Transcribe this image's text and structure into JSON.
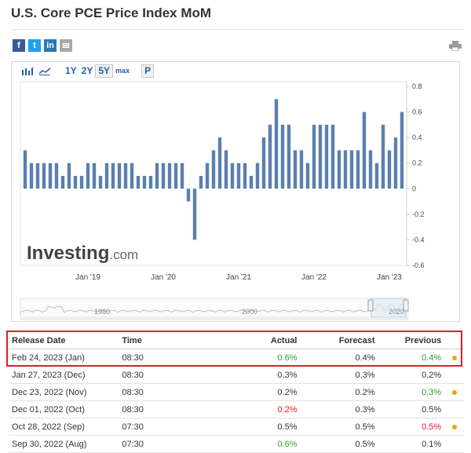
{
  "title": "U.S. Core PCE Price Index MoM",
  "social": [
    {
      "name": "facebook-icon",
      "glyph": "f",
      "color": "#3b5998"
    },
    {
      "name": "twitter-icon",
      "glyph": "t",
      "color": "#1da1f2"
    },
    {
      "name": "linkedin-icon",
      "glyph": "in",
      "color": "#2a78b5"
    },
    {
      "name": "email-icon",
      "glyph": "✉",
      "color": "#a8a8a8"
    }
  ],
  "toolbar": {
    "ranges": [
      "1Y",
      "2Y",
      "5Y",
      "max"
    ],
    "active_range": "5Y",
    "p_label": "P"
  },
  "colors": {
    "bar": "#5b7fae",
    "nav_line": "#a9c3df",
    "axis_text": "#444",
    "positive": "#2e9e2e",
    "negative": "#e21d24"
  },
  "chart_data": {
    "type": "bar",
    "title": "U.S. Core PCE Price Index MoM",
    "ylabel": "",
    "xlabel": "",
    "ylim": [
      -0.6,
      0.8
    ],
    "yticks": [
      0.8,
      0.6,
      0.4,
      0.2,
      0,
      -0.2,
      -0.4,
      -0.6
    ],
    "ytick_labels": [
      "0.8",
      "0.6",
      "0.4",
      "0.2",
      "0",
      "-0.2",
      "-0.4",
      "-0.6"
    ],
    "xtick_labels": [
      "Jan '19",
      "Jan '20",
      "Jan '21",
      "Jan '22",
      "Jan '23"
    ],
    "xtick_index": [
      10,
      22,
      34,
      46,
      58
    ],
    "values": [
      0.3,
      0.2,
      0.2,
      0.2,
      0.2,
      0.2,
      0.1,
      0.2,
      0.1,
      0.1,
      0.2,
      0.2,
      0.1,
      0.2,
      0.2,
      0.2,
      0.2,
      0.2,
      0.1,
      0.1,
      0.1,
      0.2,
      0.2,
      0.2,
      0.2,
      0.2,
      -0.1,
      -0.4,
      0.1,
      0.2,
      0.3,
      0.4,
      0.3,
      0.2,
      0.2,
      0.2,
      0.1,
      0.2,
      0.4,
      0.5,
      0.7,
      0.5,
      0.5,
      0.3,
      0.3,
      0.2,
      0.5,
      0.5,
      0.5,
      0.5,
      0.3,
      0.3,
      0.3,
      0.3,
      0.6,
      0.3,
      0.2,
      0.5,
      0.3,
      0.4,
      0.6
    ],
    "watermark": {
      "brand": "Investing",
      "suffix": ".com"
    },
    "navigator": {
      "labels": [
        "1980",
        "2000",
        "2020"
      ]
    }
  },
  "table": {
    "headers": [
      "Release Date",
      "Time",
      "Actual",
      "Forecast",
      "Previous"
    ],
    "rows": [
      {
        "date": "Feb 24, 2023 (Jan)",
        "time": "08:30",
        "actual": "0.6%",
        "actual_color": "positive",
        "forecast": "0.4%",
        "previous": "0.4%",
        "previous_color": "positive",
        "dot": true
      },
      {
        "date": "Jan 27, 2023 (Dec)",
        "time": "08:30",
        "actual": "0.3%",
        "actual_color": "neutral",
        "forecast": "0.3%",
        "previous": "0.2%",
        "previous_color": "neutral",
        "dot": false
      },
      {
        "date": "Dec 23, 2022 (Nov)",
        "time": "08:30",
        "actual": "0.2%",
        "actual_color": "neutral",
        "forecast": "0.2%",
        "previous": "0.3%",
        "previous_color": "positive",
        "dot": true
      },
      {
        "date": "Dec 01, 2022 (Oct)",
        "time": "08:30",
        "actual": "0.2%",
        "actual_color": "negative",
        "forecast": "0.3%",
        "previous": "0.5%",
        "previous_color": "neutral",
        "dot": false
      },
      {
        "date": "Oct 28, 2022 (Sep)",
        "time": "07:30",
        "actual": "0.5%",
        "actual_color": "neutral",
        "forecast": "0.5%",
        "previous": "0.5%",
        "previous_color": "negative",
        "dot": true
      },
      {
        "date": "Sep 30, 2022 (Aug)",
        "time": "07:30",
        "actual": "0.6%",
        "actual_color": "positive",
        "forecast": "0.5%",
        "previous": "0.1%",
        "previous_color": "neutral",
        "dot": false
      }
    ]
  }
}
